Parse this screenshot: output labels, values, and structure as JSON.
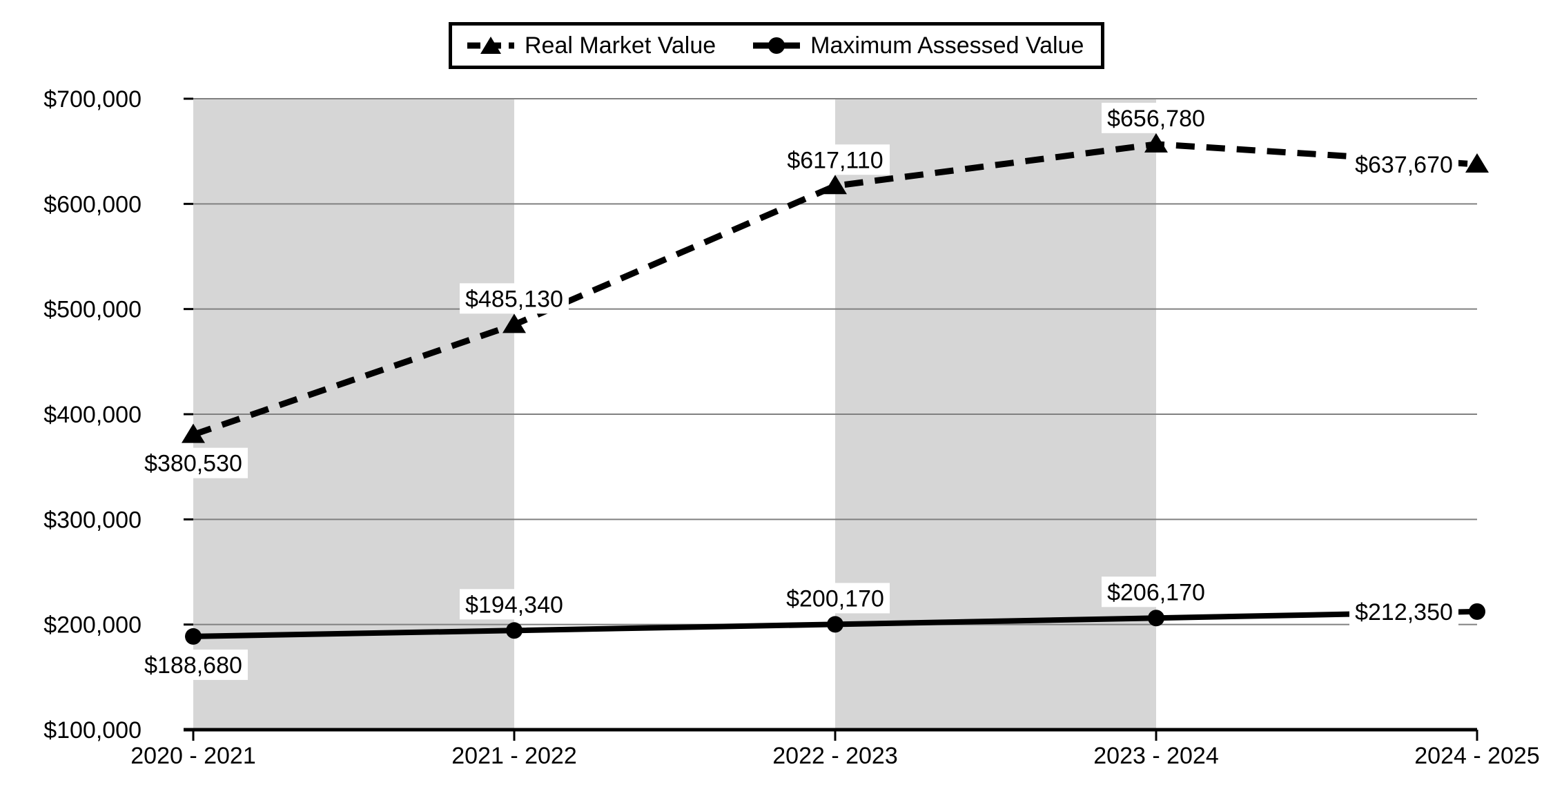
{
  "chart_data": {
    "type": "line",
    "title": "",
    "categories": [
      "2020 - 2021",
      "2021 - 2022",
      "2022 - 2023",
      "2023 - 2024",
      "2024 - 2025"
    ],
    "series": [
      {
        "name": "Real Market Value",
        "line_style": "dashed",
        "marker": "triangle",
        "values": [
          380530,
          485130,
          617110,
          656780,
          637670
        ],
        "labels": [
          "$380,530",
          "$485,130",
          "$617,110",
          "$656,780",
          "$637,670"
        ],
        "label_positions": [
          "below",
          "above",
          "above",
          "above",
          "left"
        ]
      },
      {
        "name": "Maximum Assessed Value",
        "line_style": "solid",
        "marker": "circle",
        "values": [
          188680,
          194340,
          200170,
          206170,
          212350
        ],
        "labels": [
          "$188,680",
          "$194,340",
          "$200,170",
          "$206,170",
          "$212,350"
        ],
        "label_positions": [
          "below",
          "above",
          "above",
          "above",
          "left"
        ]
      }
    ],
    "xlabel": "",
    "ylabel": "",
    "ylim": [
      100000,
      700000
    ],
    "y_tick_step": 100000,
    "y_tick_labels": [
      "$100,000",
      "$200,000",
      "$300,000",
      "$400,000",
      "$500,000",
      "$600,000",
      "$700,000"
    ],
    "grid": "horizontal",
    "legend_position": "top-center",
    "shaded_band_category_ranges": [
      [
        0,
        1
      ],
      [
        2,
        3
      ]
    ],
    "colors": {
      "series": "#000000",
      "band": "#d6d6d6",
      "gridline": "#808080",
      "label_background": "#ffffff",
      "legend_border": "#000000",
      "background": "#ffffff"
    }
  }
}
